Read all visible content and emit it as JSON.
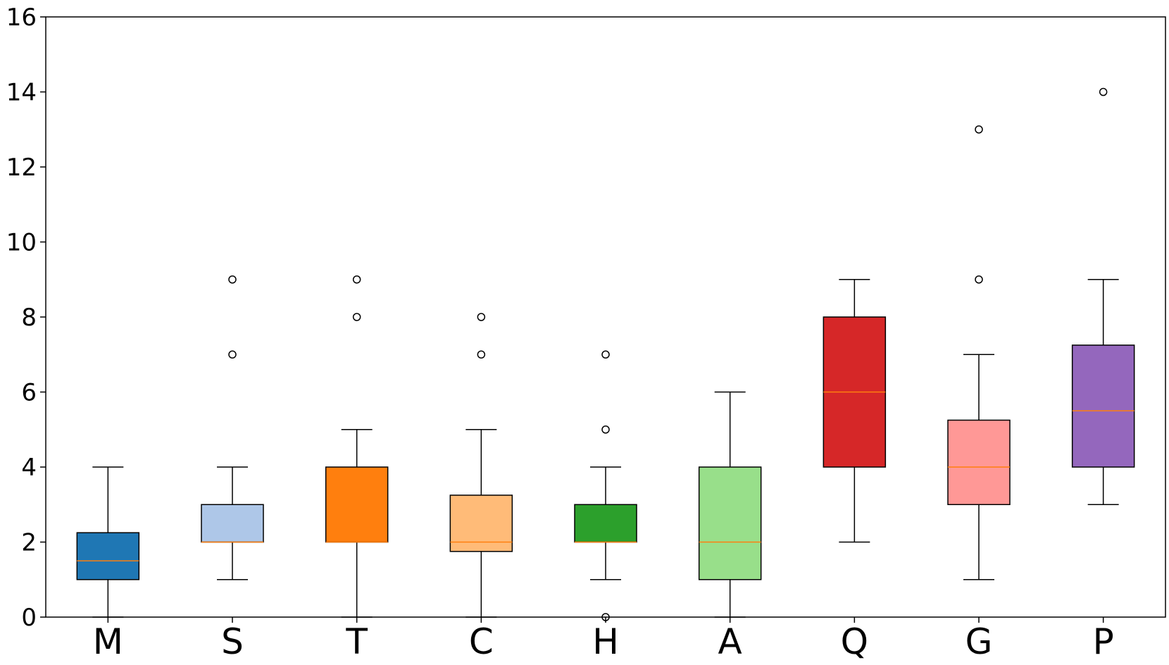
{
  "chart_data": {
    "type": "box",
    "title": "",
    "xlabel": "",
    "ylabel": "",
    "ylim": [
      0,
      16
    ],
    "yticks": [
      "0",
      "2",
      "4",
      "6",
      "8",
      "10",
      "12",
      "14",
      "16"
    ],
    "grid": false,
    "legend": "none",
    "categories": [
      "M",
      "S",
      "T",
      "C",
      "H",
      "A",
      "Q",
      "G",
      "P"
    ],
    "boxes": [
      {
        "label": "M",
        "color": "#1f77b4",
        "whisker_low": 0,
        "q1": 1,
        "median": 1.5,
        "q3": 2.25,
        "whisker_high": 4,
        "outliers": []
      },
      {
        "label": "S",
        "color": "#aec7e8",
        "whisker_low": 1,
        "q1": 2,
        "median": 2,
        "q3": 3,
        "whisker_high": 4,
        "outliers": [
          7,
          9
        ]
      },
      {
        "label": "T",
        "color": "#ff7f0e",
        "whisker_low": 0,
        "q1": 2,
        "median": 2,
        "q3": 4,
        "whisker_high": 5,
        "outliers": [
          8,
          9
        ]
      },
      {
        "label": "C",
        "color": "#ffbb78",
        "whisker_low": 0,
        "q1": 1.75,
        "median": 2,
        "q3": 3.25,
        "whisker_high": 5,
        "outliers": [
          7,
          8
        ]
      },
      {
        "label": "H",
        "color": "#2ca02c",
        "whisker_low": 1,
        "q1": 2,
        "median": 2,
        "q3": 3,
        "whisker_high": 4,
        "outliers": [
          0,
          5,
          7
        ]
      },
      {
        "label": "A",
        "color": "#98df8a",
        "whisker_low": 0,
        "q1": 1,
        "median": 2,
        "q3": 4,
        "whisker_high": 6,
        "outliers": []
      },
      {
        "label": "Q",
        "color": "#d62728",
        "whisker_low": 2,
        "q1": 4,
        "median": 6,
        "q3": 8,
        "whisker_high": 9,
        "outliers": []
      },
      {
        "label": "G",
        "color": "#ff9896",
        "whisker_low": 1,
        "q1": 3,
        "median": 4,
        "q3": 5.25,
        "whisker_high": 7,
        "outliers": [
          9,
          13
        ]
      },
      {
        "label": "P",
        "color": "#9467bd",
        "whisker_low": 3,
        "q1": 4,
        "median": 5.5,
        "q3": 7.25,
        "whisker_high": 9,
        "outliers": [
          14
        ]
      }
    ],
    "median_color": "#ff7f0e"
  }
}
